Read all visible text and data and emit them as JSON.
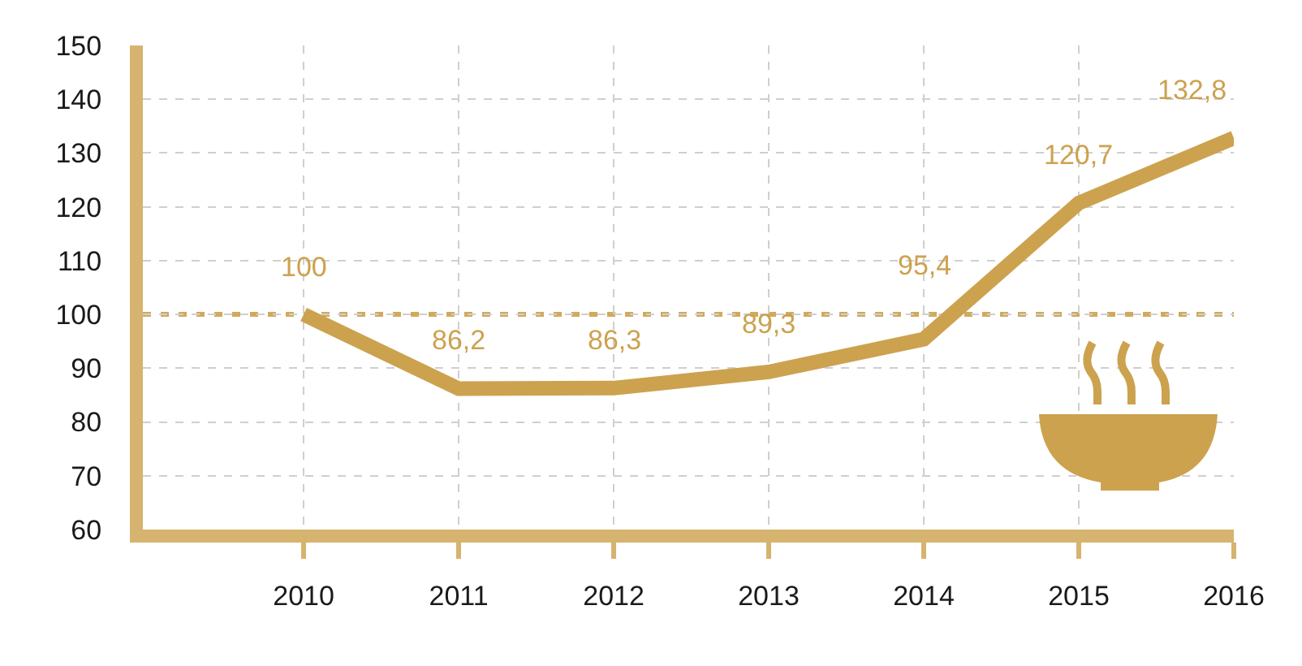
{
  "chart_data": {
    "type": "line",
    "categories": [
      "2010",
      "2011",
      "2012",
      "2013",
      "2014",
      "2015",
      "2016"
    ],
    "values": [
      100,
      86.2,
      86.3,
      89.3,
      95.4,
      120.7,
      132.8
    ],
    "value_labels": [
      "100",
      "86,2",
      "86,3",
      "89,3",
      "95,4",
      "120,7",
      "132,8"
    ],
    "color": "#cca24f",
    "ylim": [
      60,
      150
    ],
    "yticks": [
      60,
      70,
      80,
      90,
      100,
      110,
      120,
      130,
      140,
      150
    ],
    "grid": true,
    "legend": false,
    "marker": "none",
    "line_style": "solid",
    "ref_lines": [
      {
        "axis": "y",
        "value": 100,
        "color": "#d1aa5c",
        "line_style": "dotted"
      }
    ]
  }
}
